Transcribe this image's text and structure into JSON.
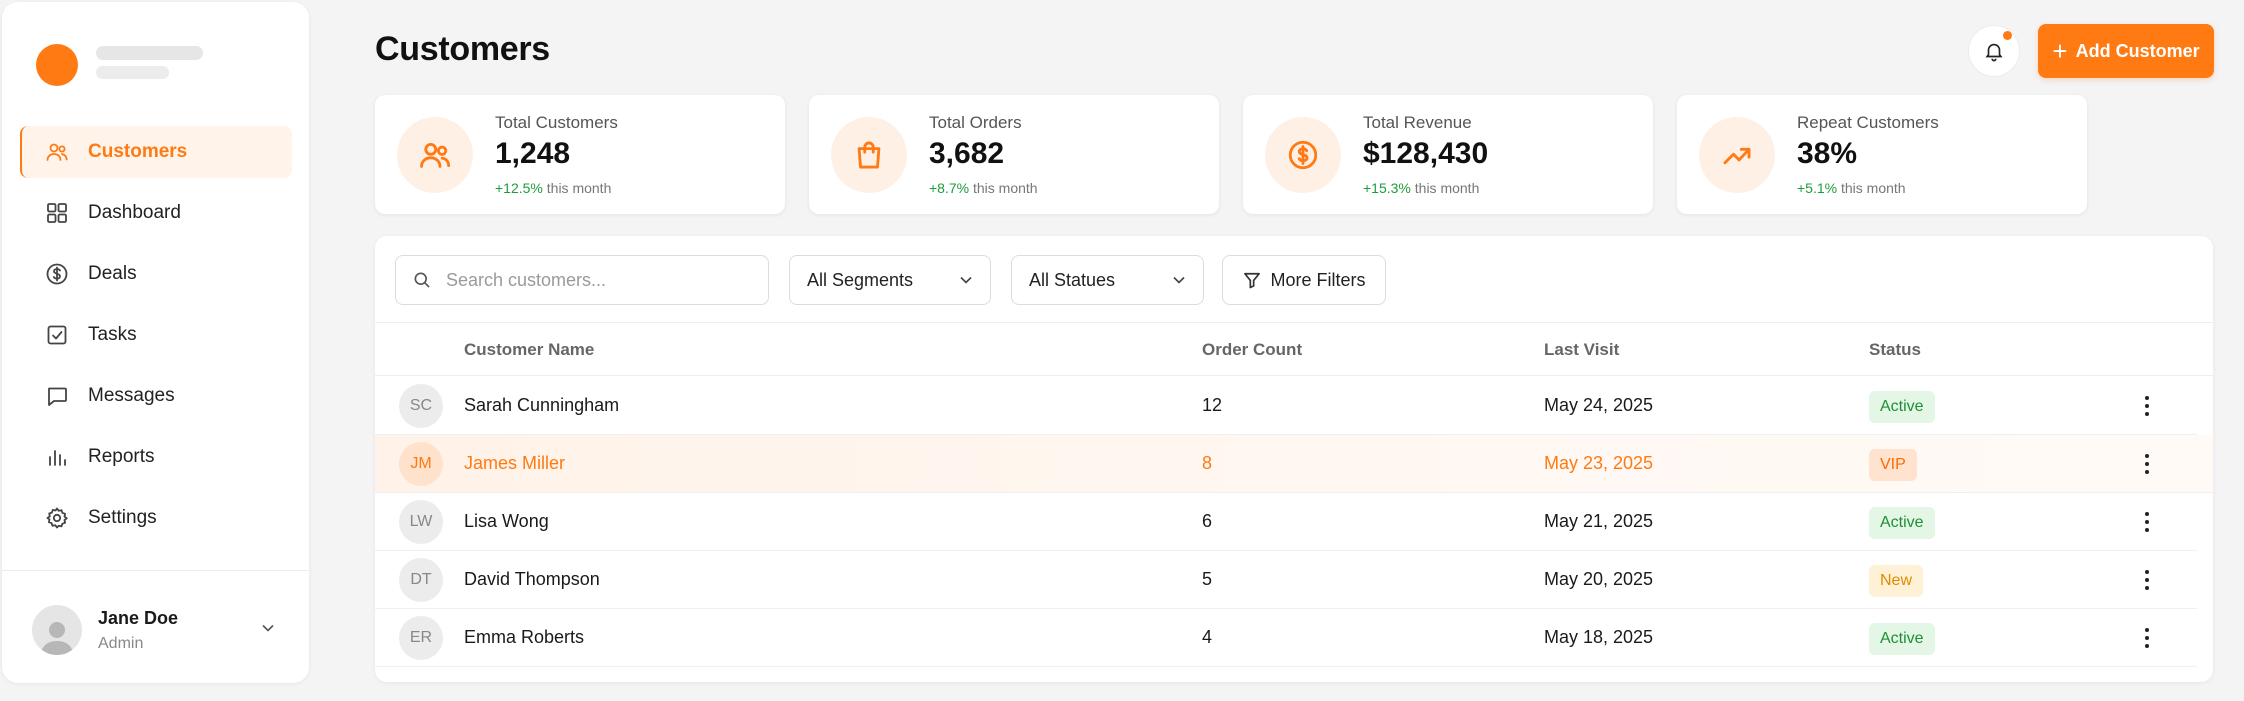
{
  "sidebar": {
    "items": [
      {
        "label": "Customers",
        "icon": "users-icon",
        "active": true
      },
      {
        "label": "Dashboard",
        "icon": "grid-icon"
      },
      {
        "label": "Deals",
        "icon": "dollar-icon"
      },
      {
        "label": "Tasks",
        "icon": "checkbox-icon"
      },
      {
        "label": "Messages",
        "icon": "message-icon"
      },
      {
        "label": "Reports",
        "icon": "bar-chart-icon"
      },
      {
        "label": "Settings",
        "icon": "gear-icon"
      }
    ],
    "user": {
      "name": "Jane Doe",
      "role": "Admin"
    }
  },
  "header": {
    "title": "Customers",
    "add_button": "Add Customer"
  },
  "stats": [
    {
      "label": "Total Customers",
      "value": "1,248",
      "change": "+12.5%",
      "suffix": "this month",
      "icon": "users-icon"
    },
    {
      "label": "Total Orders",
      "value": "3,682",
      "change": "+8.7%",
      "suffix": "this month",
      "icon": "shopping-bag-icon"
    },
    {
      "label": "Total Revenue",
      "value": "$128,430",
      "change": "+15.3%",
      "suffix": "this month",
      "icon": "dollar-circle-icon"
    },
    {
      "label": "Repeat Customers",
      "value": "38%",
      "change": "+5.1%",
      "suffix": "this month",
      "icon": "trending-up-icon"
    }
  ],
  "filters": {
    "search_placeholder": "Search customers...",
    "segment": "All Segments",
    "status": "All Statues",
    "more": "More Filters"
  },
  "table": {
    "columns": [
      "Customer Name",
      "Order Count",
      "Last Visit",
      "Status"
    ],
    "rows": [
      {
        "initials": "SC",
        "name": "Sarah Cunningham",
        "orders": "12",
        "last_visit": "May 24, 2025",
        "status": "Active",
        "status_type": "active"
      },
      {
        "initials": "JM",
        "name": "James Miller",
        "orders": "8",
        "last_visit": "May 23, 2025",
        "status": "VIP",
        "status_type": "vip",
        "highlighted": true
      },
      {
        "initials": "LW",
        "name": "Lisa Wong",
        "orders": "6",
        "last_visit": "May 21, 2025",
        "status": "Active",
        "status_type": "active"
      },
      {
        "initials": "DT",
        "name": "David Thompson",
        "orders": "5",
        "last_visit": "May 20, 2025",
        "status": "New",
        "status_type": "new"
      },
      {
        "initials": "ER",
        "name": "Emma Roberts",
        "orders": "4",
        "last_visit": "May 18, 2025",
        "status": "Active",
        "status_type": "active"
      }
    ]
  },
  "colors": {
    "accent": "#ff7a12",
    "positive": "#1f9d3a",
    "background": "#f4f4f5"
  }
}
